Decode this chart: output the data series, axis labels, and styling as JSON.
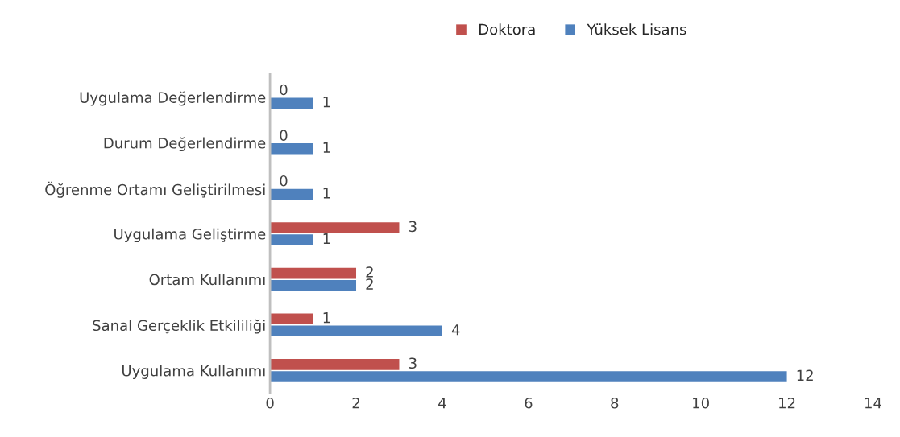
{
  "chart_data": {
    "type": "bar",
    "orientation": "horizontal",
    "categories": [
      "Uygulama Değerlendirme",
      "Durum Değerlendirme",
      "Öğrenme Ortamı Geliştirilmesi",
      "Uygulama Geliştirme",
      "Ortam Kullanımı",
      "Sanal Gerçeklik Etkililiği",
      "Uygulama Kullanımı"
    ],
    "series": [
      {
        "name": "Doktora",
        "color": "#c0504d",
        "values": [
          0,
          0,
          0,
          3,
          2,
          1,
          3
        ]
      },
      {
        "name": "Yüksek Lisans",
        "color": "#4f81bd",
        "values": [
          1,
          1,
          1,
          1,
          2,
          4,
          12
        ]
      }
    ],
    "xlim": [
      0,
      14
    ],
    "xticks": [
      0,
      2,
      4,
      6,
      8,
      10,
      12,
      14
    ],
    "data_labels": true,
    "grid": false,
    "legend": "top"
  }
}
